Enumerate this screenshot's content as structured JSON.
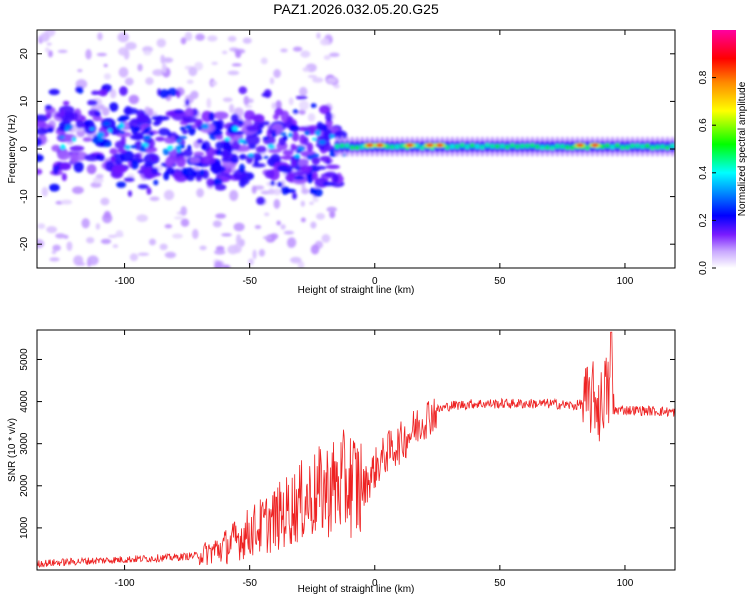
{
  "title": "PAZ1.2026.032.05.20.G25",
  "chart_data": [
    {
      "type": "heatmap",
      "xlabel": "Height of straight line (km)",
      "ylabel": "Frequency (Hz)",
      "xlim": [
        -135,
        120
      ],
      "ylim": [
        -25,
        25
      ],
      "xticks": [
        -100,
        -50,
        0,
        50,
        100
      ],
      "xtick_labels": [
        "-100",
        "-50",
        "0",
        "50",
        "100"
      ],
      "yticks": [
        -20,
        -10,
        0,
        10,
        20
      ],
      "ytick_labels": [
        "-20",
        "-10",
        "0",
        "10",
        "20"
      ],
      "colorbar": {
        "label": "Normalized spectral amplitude",
        "range": [
          0,
          1
        ],
        "ticks": [
          0.0,
          0.2,
          0.4,
          0.6,
          0.8
        ],
        "tick_labels": [
          "0.0",
          "0.2",
          "0.4",
          "0.6",
          "0.8"
        ],
        "colors": [
          "#ffffff",
          "#b07cff",
          "#6a00e8",
          "#0000ff",
          "#00ffff",
          "#00ff00",
          "#ffff00",
          "#ff8000",
          "#ff0000",
          "#ff00a0"
        ]
      },
      "description_values": {
        "signal_band_center_hz": 0.5,
        "signal_band_start_km": -15,
        "hot_spots_km": [
          -2,
          2,
          14,
          22,
          26,
          82,
          88
        ]
      }
    },
    {
      "type": "line",
      "xlabel": "Height of straight line (km)",
      "ylabel": "SNR (10 * v/v)",
      "xlim": [
        -135,
        120
      ],
      "ylim": [
        0,
        5700
      ],
      "xticks": [
        -100,
        -50,
        0,
        50,
        100
      ],
      "xtick_labels": [
        "-100",
        "-50",
        "0",
        "50",
        "100"
      ],
      "yticks": [
        1000,
        2000,
        3000,
        4000,
        5000
      ],
      "ytick_labels": [
        "1000",
        "2000",
        "3000",
        "4000",
        "5000"
      ],
      "line_color": "#ee2222",
      "series": [
        {
          "name": "SNR",
          "x": [
            -135,
            -120,
            -100,
            -80,
            -70,
            -60,
            -50,
            -40,
            -30,
            -20,
            -10,
            -5,
            0,
            5,
            10,
            15,
            20,
            25,
            30,
            40,
            50,
            60,
            70,
            80,
            85,
            88,
            90,
            92,
            94,
            96,
            100,
            110,
            120
          ],
          "y": [
            150,
            200,
            250,
            300,
            350,
            550,
            900,
            1200,
            1600,
            1900,
            2100,
            1900,
            2400,
            2800,
            3000,
            3300,
            3600,
            3800,
            3900,
            3950,
            3950,
            3950,
            3950,
            3900,
            4000,
            4100,
            3800,
            4300,
            4100,
            3800,
            3800,
            3780,
            3750
          ]
        }
      ]
    }
  ]
}
